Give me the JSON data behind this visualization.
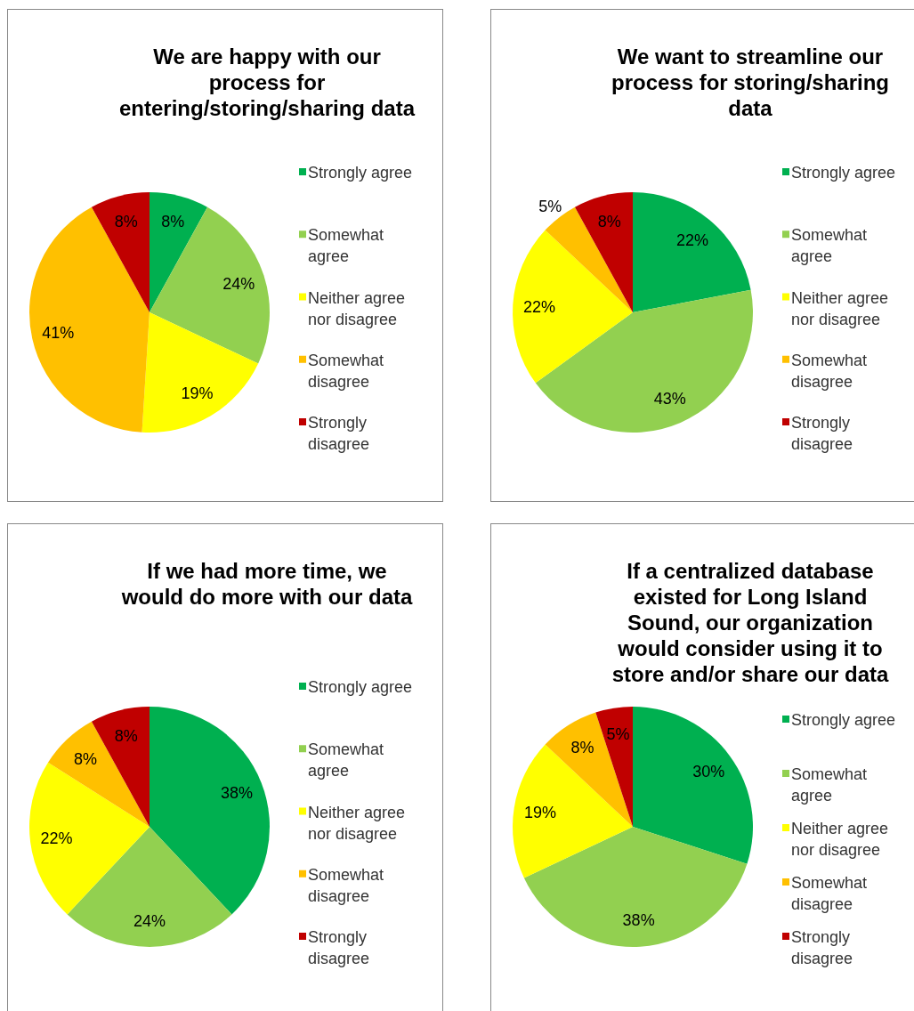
{
  "chart_data": [
    {
      "type": "pie",
      "title": "We are happy with our process for entering/storing/sharing data",
      "categories": [
        "Strongly agree",
        "Somewhat agree",
        "Neither agree nor disagree",
        "Somewhat disagree",
        "Strongly disagree"
      ],
      "values": [
        8,
        24,
        19,
        41,
        8
      ],
      "value_labels": [
        "8%",
        "24%",
        "19%",
        "41%",
        "8%"
      ],
      "colors": [
        "#00b050",
        "#92d050",
        "#ffff00",
        "#ffc000",
        "#c00000"
      ],
      "legend": "right"
    },
    {
      "type": "pie",
      "title": "We want to streamline our process for storing/sharing data",
      "categories": [
        "Strongly agree",
        "Somewhat agree",
        "Neither agree nor disagree",
        "Somewhat disagree",
        "Strongly disagree"
      ],
      "values": [
        22,
        43,
        22,
        5,
        8
      ],
      "value_labels": [
        "22%",
        "43%",
        "22%",
        "5%",
        "8%"
      ],
      "colors": [
        "#00b050",
        "#92d050",
        "#ffff00",
        "#ffc000",
        "#c00000"
      ],
      "legend": "right"
    },
    {
      "type": "pie",
      "title": "If we had more time, we would do more with our data",
      "categories": [
        "Strongly agree",
        "Somewhat agree",
        "Neither agree nor disagree",
        "Somewhat disagree",
        "Strongly disagree"
      ],
      "values": [
        38,
        24,
        22,
        8,
        8
      ],
      "value_labels": [
        "38%",
        "24%",
        "22%",
        "8%",
        "8%"
      ],
      "colors": [
        "#00b050",
        "#92d050",
        "#ffff00",
        "#ffc000",
        "#c00000"
      ],
      "legend": "right"
    },
    {
      "type": "pie",
      "title": "If a centralized database existed for Long Island Sound, our organization would consider using it to store and/or share our data",
      "categories": [
        "Strongly agree",
        "Somewhat agree",
        "Neither agree nor disagree",
        "Somewhat disagree",
        "Strongly disagree"
      ],
      "values": [
        30,
        38,
        19,
        8,
        5
      ],
      "value_labels": [
        "30%",
        "38%",
        "19%",
        "8%",
        "5%"
      ],
      "colors": [
        "#00b050",
        "#92d050",
        "#ffff00",
        "#ffc000",
        "#c00000"
      ],
      "legend": "right"
    }
  ]
}
